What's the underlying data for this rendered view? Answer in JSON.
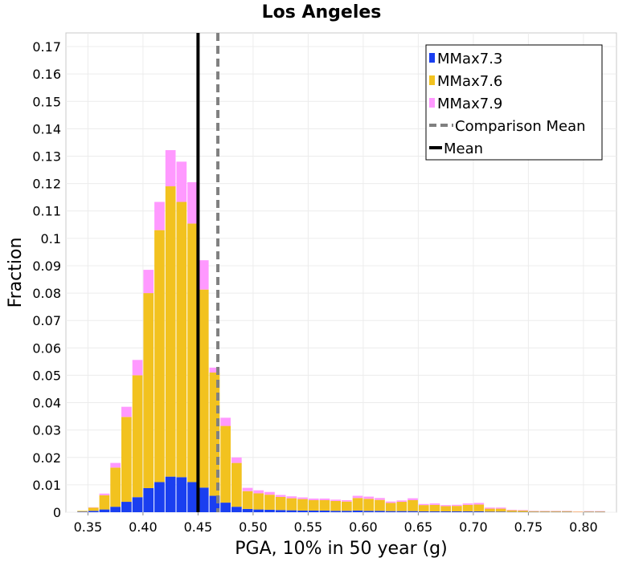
{
  "chart_data": {
    "type": "bar",
    "stacked": true,
    "title": "Los Angeles",
    "xlabel": "PGA, 10% in 50 year (g)",
    "ylabel": "Fraction",
    "xlim": [
      0.33,
      0.83
    ],
    "ylim": [
      0,
      0.175
    ],
    "x_ticks": [
      "0.35",
      "0.40",
      "0.45",
      "0.50",
      "0.55",
      "0.60",
      "0.65",
      "0.70",
      "0.75",
      "0.80"
    ],
    "y_ticks": [
      "0",
      "0.01",
      "0.02",
      "0.03",
      "0.04",
      "0.05",
      "0.06",
      "0.07",
      "0.08",
      "0.09",
      "0.1",
      "0.11",
      "0.12",
      "0.13",
      "0.14",
      "0.15",
      "0.16",
      "0.17"
    ],
    "grid": true,
    "legend_position": "top-right",
    "bin_width": 0.01,
    "bin_centers": [
      0.345,
      0.355,
      0.365,
      0.375,
      0.385,
      0.395,
      0.405,
      0.415,
      0.425,
      0.435,
      0.445,
      0.455,
      0.465,
      0.475,
      0.485,
      0.495,
      0.505,
      0.515,
      0.525,
      0.535,
      0.545,
      0.555,
      0.565,
      0.575,
      0.585,
      0.595,
      0.605,
      0.615,
      0.625,
      0.635,
      0.645,
      0.655,
      0.665,
      0.675,
      0.685,
      0.695,
      0.705,
      0.715,
      0.725,
      0.735,
      0.745,
      0.755,
      0.765,
      0.775,
      0.785,
      0.795,
      0.805,
      0.815
    ],
    "series": [
      {
        "name": "MMax7.3",
        "color": "#1a3ff0",
        "values": [
          0.0002,
          0.0005,
          0.001,
          0.002,
          0.0038,
          0.0055,
          0.0088,
          0.011,
          0.013,
          0.0128,
          0.011,
          0.009,
          0.006,
          0.0035,
          0.002,
          0.0012,
          0.001,
          0.0009,
          0.0008,
          0.0007,
          0.0006,
          0.0006,
          0.0006,
          0.0005,
          0.0005,
          0.0006,
          0.0005,
          0.0005,
          0.0004,
          0.0004,
          0.0004,
          0.0003,
          0.0003,
          0.0003,
          0.0003,
          0.0003,
          0.0003,
          0.0002,
          0.0002,
          0.0001,
          0.0001,
          0.0001,
          0.0001,
          0.0001,
          0.0001,
          0,
          0.0001,
          0.0001
        ]
      },
      {
        "name": "MMax7.6",
        "color": "#f2c21f",
        "values": [
          0.0003,
          0.0012,
          0.0052,
          0.0143,
          0.031,
          0.0445,
          0.0712,
          0.092,
          0.106,
          0.1005,
          0.0944,
          0.0723,
          0.045,
          0.028,
          0.016,
          0.0065,
          0.0059,
          0.0055,
          0.0048,
          0.0044,
          0.0042,
          0.0038,
          0.0038,
          0.0036,
          0.0034,
          0.0046,
          0.0044,
          0.004,
          0.003,
          0.0034,
          0.004,
          0.0023,
          0.0024,
          0.0019,
          0.002,
          0.0024,
          0.0025,
          0.0011,
          0.0011,
          0.0006,
          0.0005,
          0.0003,
          0.0003,
          0.0003,
          0.0003,
          0.0002,
          0.0002,
          0.0002
        ]
      },
      {
        "name": "MMax7.9",
        "color": "#ff99ff",
        "values": [
          0,
          0.0001,
          0.0006,
          0.0017,
          0.0037,
          0.0056,
          0.0085,
          0.0103,
          0.0132,
          0.0147,
          0.0151,
          0.0107,
          0.0018,
          0.003,
          0.002,
          0.0012,
          0.0011,
          0.001,
          0.0007,
          0.0007,
          0.0006,
          0.0006,
          0.0006,
          0.0005,
          0.0005,
          0.0008,
          0.0008,
          0.0007,
          0.0005,
          0.0005,
          0.0007,
          0.0004,
          0.0005,
          0.0004,
          0.0004,
          0.0005,
          0.0006,
          0.0004,
          0.0004,
          0.0002,
          0.0002,
          0.0001,
          0.0001,
          0.0001,
          0.0001,
          0.0001,
          0.0001,
          0.0001
        ]
      }
    ],
    "lines": [
      {
        "name": "Comparison Mean",
        "x": 0.468,
        "color": "#808080",
        "style": "dashed"
      },
      {
        "name": "Mean",
        "x": 0.45,
        "color": "#000000",
        "style": "solid"
      }
    ]
  }
}
